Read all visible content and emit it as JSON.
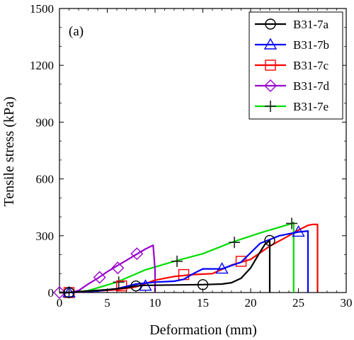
{
  "chart_data": {
    "type": "line",
    "title": "",
    "panel_label": "(a)",
    "xlabel": "Deformation (mm)",
    "ylabel": "Tensile stress (kPa)",
    "xlim": [
      0,
      30
    ],
    "ylim": [
      0,
      1500
    ],
    "xticks": [
      0,
      5,
      10,
      15,
      20,
      25,
      30
    ],
    "yticks": [
      0,
      300,
      600,
      900,
      1200,
      1500
    ],
    "grid": false,
    "legend_position": "top-right",
    "series": [
      {
        "name": "B31-7a",
        "color": "#000000",
        "marker": "circle",
        "x": [
          0,
          1,
          3,
          5,
          7,
          8,
          9,
          12,
          15,
          17,
          18,
          19,
          20,
          21,
          21.5,
          22,
          22,
          22
        ],
        "y": [
          0,
          0,
          8,
          15,
          25,
          35,
          38,
          40,
          42,
          45,
          52,
          75,
          130,
          215,
          255,
          275,
          150,
          0
        ],
        "marker_x": [
          1,
          8,
          15,
          22
        ],
        "marker_y": [
          0,
          35,
          42,
          275
        ]
      },
      {
        "name": "B31-7b",
        "color": "#0000ff",
        "marker": "triangle",
        "x": [
          0,
          1,
          2,
          4,
          6,
          8,
          10,
          12,
          13,
          14,
          15,
          17,
          19,
          21,
          23,
          25,
          26,
          26,
          26
        ],
        "y": [
          0,
          0,
          3,
          8,
          20,
          45,
          55,
          60,
          70,
          100,
          125,
          125,
          160,
          260,
          300,
          320,
          325,
          150,
          0
        ],
        "marker_x": [
          1,
          9,
          17,
          25
        ],
        "marker_y": [
          0,
          35,
          125,
          320
        ],
        "extra_x": [
          9,
          9.5,
          10
        ],
        "extra_y": [
          0,
          0,
          0
        ]
      },
      {
        "name": "B31-7c",
        "color": "#ff0000",
        "marker": "square",
        "x": [
          0,
          1,
          3,
          6,
          8,
          10,
          12,
          14,
          16,
          18,
          20,
          22,
          24,
          25,
          26,
          26.5,
          27,
          27,
          27
        ],
        "y": [
          0,
          0,
          5,
          15,
          30,
          65,
          85,
          95,
          100,
          145,
          175,
          245,
          300,
          330,
          355,
          360,
          360,
          150,
          0
        ],
        "marker_x": [
          1,
          6.5,
          13,
          19
        ],
        "marker_y": [
          0,
          35,
          95,
          165
        ]
      },
      {
        "name": "B31-7d",
        "color": "#9900cc",
        "marker": "diamond",
        "x": [
          0,
          1,
          2,
          3,
          4,
          5,
          6,
          7,
          8,
          9,
          9.8,
          10,
          10
        ],
        "y": [
          0,
          0,
          10,
          45,
          75,
          110,
          140,
          170,
          200,
          230,
          250,
          120,
          0
        ],
        "marker_x": [
          0,
          4.2,
          6.1,
          8.1
        ],
        "marker_y": [
          0,
          80,
          130,
          205
        ]
      },
      {
        "name": "B31-7e",
        "color": "#00dd00",
        "marker": "plus",
        "x": [
          0,
          1,
          3,
          6,
          9,
          12,
          15,
          18,
          21,
          24,
          24.5,
          24.5,
          24.5
        ],
        "y": [
          0,
          0,
          10,
          55,
          120,
          165,
          205,
          265,
          315,
          360,
          370,
          150,
          0
        ],
        "marker_x": [
          1,
          6.2,
          12.3,
          18.3,
          24.3
        ],
        "marker_y": [
          0,
          55,
          165,
          265,
          365
        ]
      }
    ]
  }
}
